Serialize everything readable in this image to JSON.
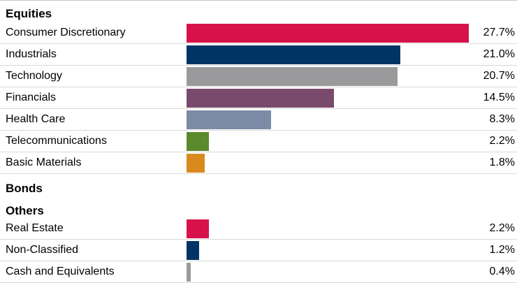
{
  "chart_data": {
    "type": "bar",
    "orientation": "horizontal",
    "groups": [
      {
        "title": "Equities",
        "rows": [
          {
            "label": "Consumer Discretionary",
            "value": 27.7,
            "display": "27.7%",
            "color": "#d7124a"
          },
          {
            "label": "Industrials",
            "value": 21.0,
            "display": "21.0%",
            "color": "#003466"
          },
          {
            "label": "Technology",
            "value": 20.7,
            "display": "20.7%",
            "color": "#9a9a9c"
          },
          {
            "label": "Financials",
            "value": 14.5,
            "display": "14.5%",
            "color": "#7a4a6c"
          },
          {
            "label": "Health Care",
            "value": 8.3,
            "display": "8.3%",
            "color": "#7b8aa5"
          },
          {
            "label": "Telecommunications",
            "value": 2.2,
            "display": "2.2%",
            "color": "#5a8a2c"
          },
          {
            "label": "Basic Materials",
            "value": 1.8,
            "display": "1.8%",
            "color": "#d98a1e"
          }
        ]
      },
      {
        "title": "Bonds",
        "rows": []
      },
      {
        "title": "Others",
        "rows": [
          {
            "label": "Real Estate",
            "value": 2.2,
            "display": "2.2%",
            "color": "#d7124a"
          },
          {
            "label": "Non-Classified",
            "value": 1.2,
            "display": "1.2%",
            "color": "#003466"
          },
          {
            "label": "Cash and Equivalents",
            "value": 0.4,
            "display": "0.4%",
            "color": "#9a9a9c"
          }
        ]
      }
    ],
    "xlim": [
      0,
      27.7
    ],
    "grid": false,
    "legend": "none"
  }
}
